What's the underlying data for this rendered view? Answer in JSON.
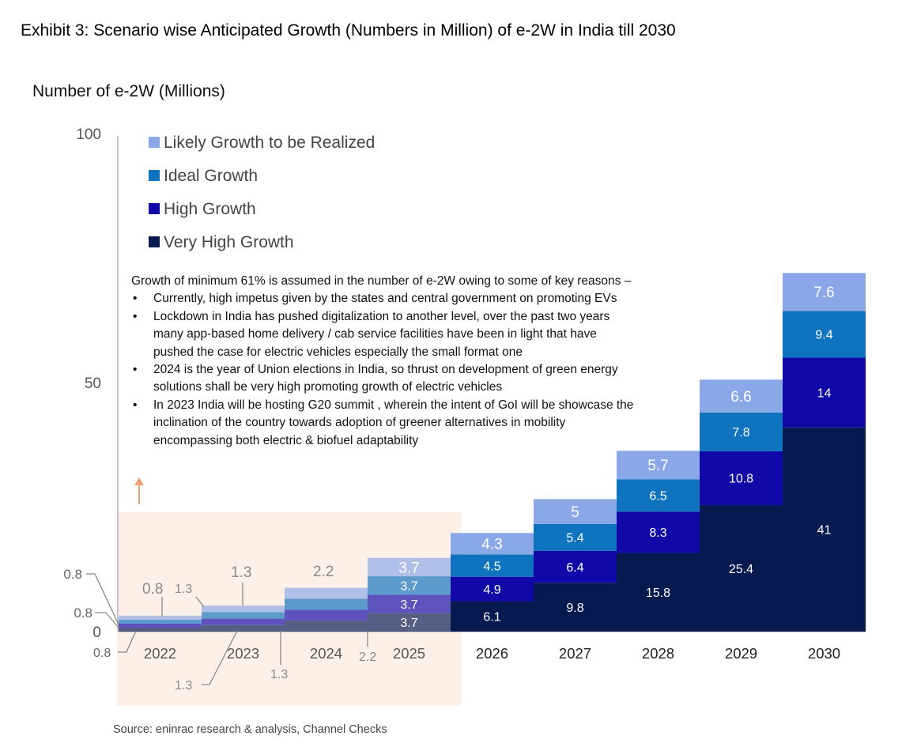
{
  "title": "Exhibit 3: Scenario wise Anticipated Growth (Numbers in Million) of e-2W  in India till 2030",
  "source": "Source: eninrac research & analysis, Channel Checks",
  "notes": {
    "intro": "Growth of minimum 61% is assumed in the number of e-2W owing to some of key reasons –",
    "bullets": [
      "Currently, high impetus given by the states and central government on promoting EVs",
      "Lockdown in India has pushed digitalization to another level, over the past two years many app-based home delivery / cab service  facilities have been in light that have pushed the case for electric vehicles especially the small format one",
      "2024 is the year of Union elections in India, so thrust on development of green energy solutions shall be very high promoting growth of electric vehicles",
      "In 2023 India will be hosting G20 summit , wherein the intent of GoI will be showcase the inclination of the country towards adoption of greener alternatives in mobility encompassing both electric & biofuel adaptability"
    ]
  },
  "colors": {
    "very_high": "#061A4F",
    "high": "#1208A8",
    "ideal": "#0F73BD",
    "likely": "#8AA8E8",
    "highlight_box": "#FDF0E8",
    "arrow": "#F0A070",
    "axis": "#C8C8C8",
    "callout": "#888888"
  },
  "chart_data": {
    "type": "bar",
    "stacked": true,
    "ylabel": "Number of e-2W (Millions)",
    "ylim": [
      0,
      100
    ],
    "y_ticks": [
      "0",
      "50",
      "100"
    ],
    "categories": [
      "2022",
      "2023",
      "2024",
      "2025",
      "2026",
      "2027",
      "2028",
      "2029",
      "2030"
    ],
    "series": [
      {
        "name": "Very High Growth",
        "values": [
          0.8,
          1.3,
          2.2,
          3.7,
          6.1,
          9.8,
          15.8,
          25.4,
          41
        ]
      },
      {
        "name": "High Growth",
        "values": [
          0.8,
          1.3,
          2.2,
          3.7,
          4.9,
          6.4,
          8.3,
          10.8,
          14
        ]
      },
      {
        "name": "Ideal Growth",
        "values": [
          0.8,
          1.3,
          2.2,
          3.7,
          4.5,
          5.4,
          6.5,
          7.8,
          9.4
        ]
      },
      {
        "name": "Likely Growth to be Realized",
        "values": [
          0.8,
          1.3,
          2.2,
          3.7,
          4.3,
          5,
          5.7,
          6.6,
          7.6
        ]
      }
    ],
    "legend_order": [
      "Likely Growth to be Realized",
      "Ideal Growth",
      "High Growth",
      "Very High Growth"
    ],
    "legend_position": "top-left",
    "highlighted_years": [
      "2022",
      "2023",
      "2024",
      "2025"
    ],
    "small_value_callouts": {
      "y_axis": [
        "0.8",
        "0.8"
      ],
      "bar_2022": [
        "0.8",
        "0.8"
      ],
      "bar_2023": [
        "1.3",
        "1.3",
        "1.3"
      ],
      "bar_2024": [
        "2.2",
        "1.3"
      ],
      "bar_2025": [
        "2.2"
      ]
    }
  }
}
